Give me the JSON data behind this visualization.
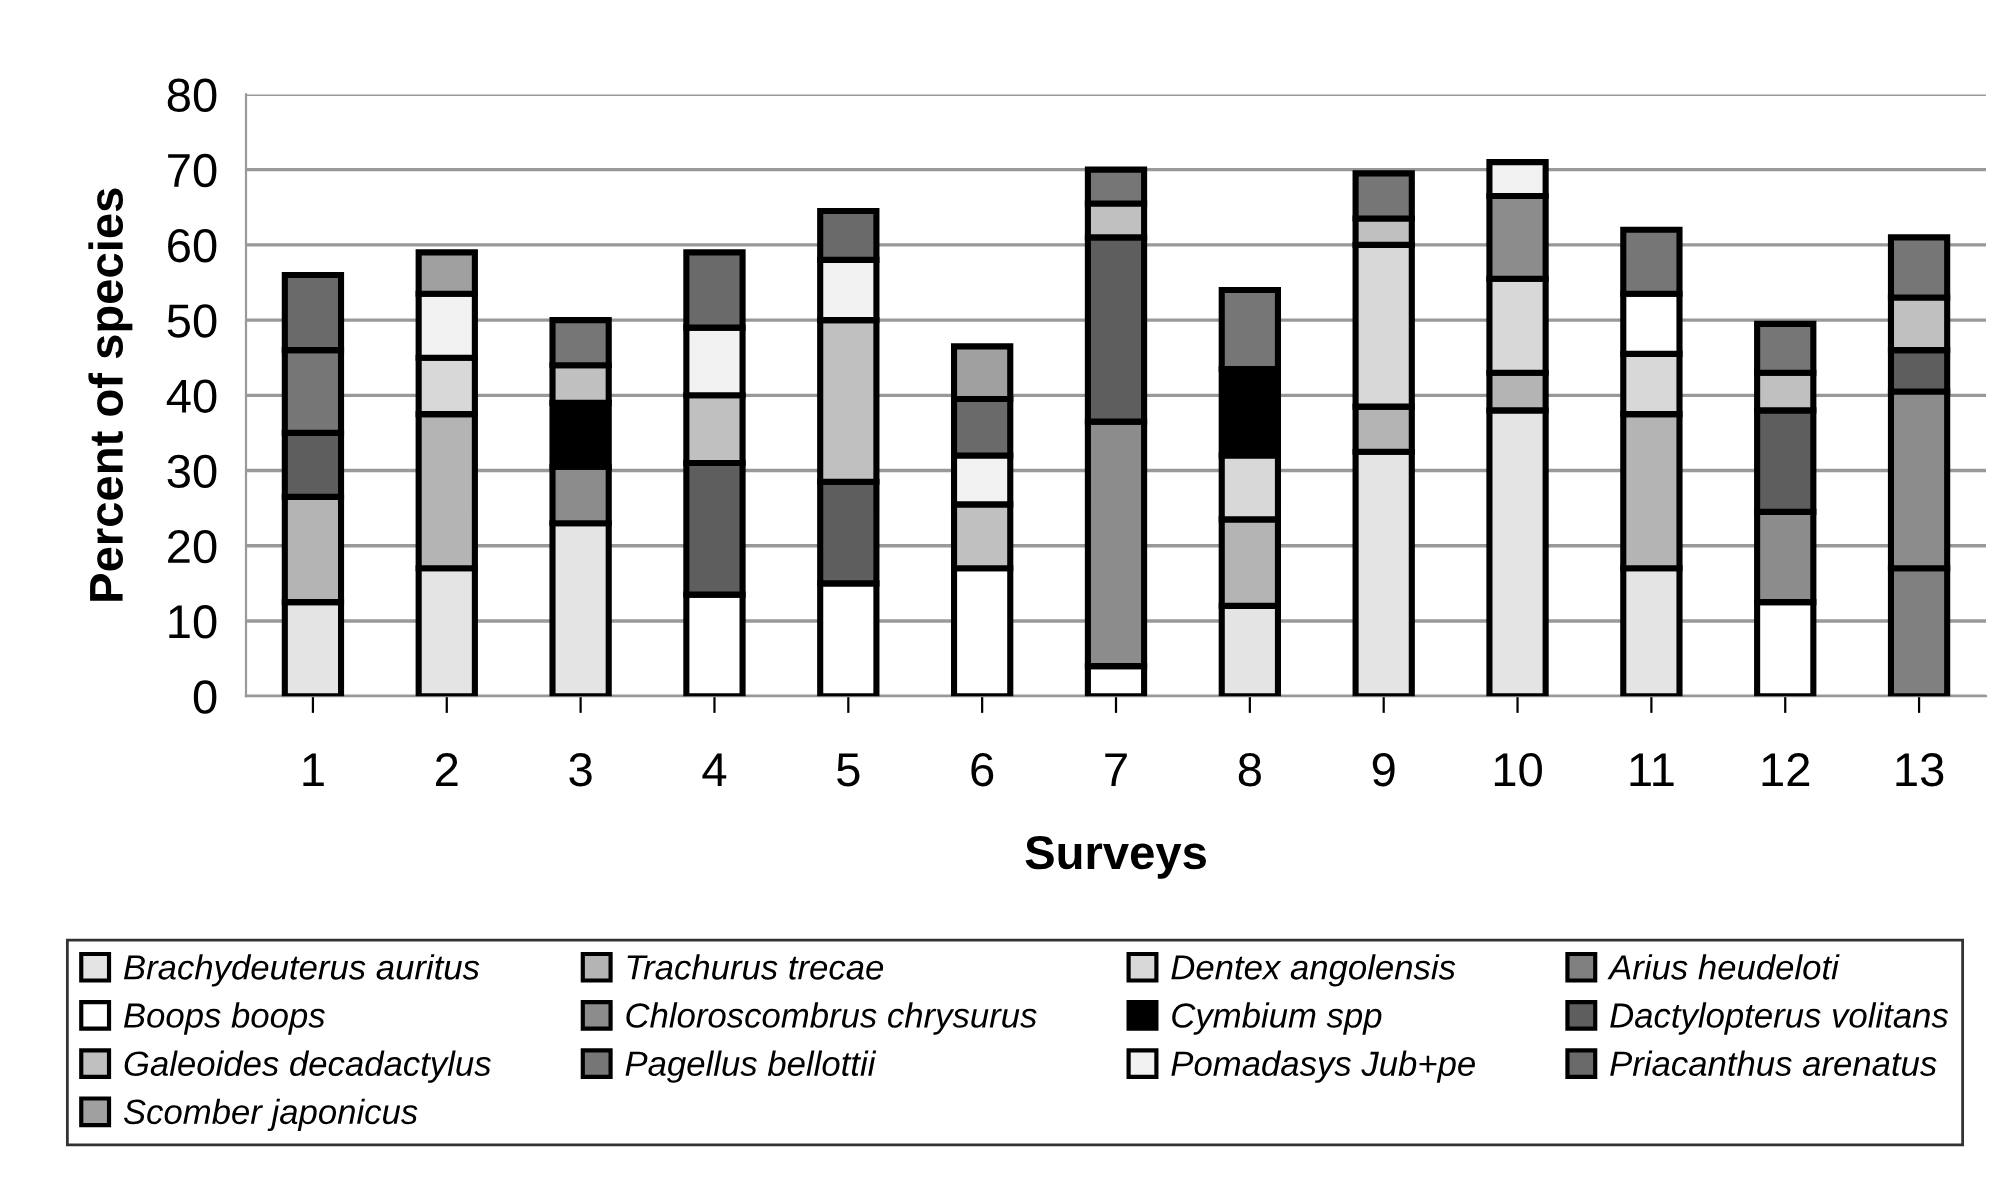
{
  "chart_data": {
    "type": "bar",
    "stacked": true,
    "xlabel": "Surveys",
    "ylabel": "Percent of species",
    "categories": [
      "1",
      "2",
      "3",
      "4",
      "5",
      "6",
      "7",
      "8",
      "9",
      "10",
      "11",
      "12",
      "13"
    ],
    "ylim": [
      0,
      80
    ],
    "yticks": [
      0,
      10,
      20,
      30,
      40,
      50,
      60,
      70,
      80
    ],
    "grid": "y",
    "legend": "bottom",
    "series": [
      {
        "name": "Brachydeuterus auritus",
        "color": "#e4e4e4",
        "values": [
          12.5,
          17,
          23,
          null,
          null,
          null,
          null,
          12,
          32.5,
          38,
          17,
          null,
          null
        ]
      },
      {
        "name": "Trachurus trecae",
        "color": "#b4b4b4",
        "values": [
          14,
          20.5,
          null,
          null,
          null,
          null,
          null,
          11.5,
          6,
          5,
          20.5,
          null,
          null
        ]
      },
      {
        "name": "Dentex angolensis",
        "color": "#d8d8d8",
        "values": [
          null,
          7.5,
          null,
          null,
          null,
          null,
          null,
          8.5,
          21.5,
          12.5,
          8,
          null,
          null
        ]
      },
      {
        "name": "Arius heudeloti",
        "color": "#808080",
        "values": [
          null,
          null,
          null,
          null,
          null,
          null,
          null,
          null,
          null,
          null,
          null,
          null,
          17
        ]
      },
      {
        "name": "Boops boops",
        "color": "#ffffff",
        "values": [
          null,
          null,
          null,
          13.5,
          15,
          17,
          4,
          null,
          null,
          null,
          8,
          12.5,
          null
        ]
      },
      {
        "name": "Chloroscombrus chrysurus",
        "color": "#8c8c8c",
        "values": [
          null,
          null,
          7.5,
          null,
          null,
          null,
          32.5,
          null,
          null,
          11,
          null,
          12,
          23.5
        ]
      },
      {
        "name": "Cymbium spp",
        "color": "#000000",
        "values": [
          null,
          null,
          8.5,
          null,
          null,
          null,
          null,
          11.5,
          null,
          null,
          null,
          null,
          null
        ]
      },
      {
        "name": "Dactylopterus volitans",
        "color": "#5e5e5e",
        "values": [
          8.5,
          null,
          null,
          17.5,
          13.5,
          null,
          24.5,
          null,
          null,
          null,
          null,
          13.5,
          5.5
        ]
      },
      {
        "name": "Galeoides decadactylus",
        "color": "#c0c0c0",
        "values": [
          null,
          null,
          5,
          9,
          21.5,
          8.5,
          4.5,
          null,
          3.5,
          null,
          null,
          5,
          7
        ]
      },
      {
        "name": "Pagellus bellottii",
        "color": "#767676",
        "values": [
          11,
          null,
          6,
          null,
          null,
          null,
          4.5,
          10.5,
          6,
          null,
          8.5,
          6.5,
          8
        ]
      },
      {
        "name": "Pomadasys Jub+pe",
        "color": "#f2f2f2",
        "values": [
          null,
          8.5,
          null,
          9,
          8,
          6.5,
          null,
          null,
          null,
          4.5,
          null,
          null,
          null
        ]
      },
      {
        "name": "Priacanthus arenatus",
        "color": "#6a6a6a",
        "values": [
          10,
          null,
          null,
          10,
          6.5,
          7.5,
          null,
          null,
          null,
          null,
          null,
          null,
          null
        ]
      },
      {
        "name": "Scomber japonicus",
        "color": "#a0a0a0",
        "values": [
          null,
          5.5,
          null,
          null,
          null,
          7,
          null,
          null,
          null,
          null,
          null,
          null,
          null
        ]
      }
    ]
  }
}
